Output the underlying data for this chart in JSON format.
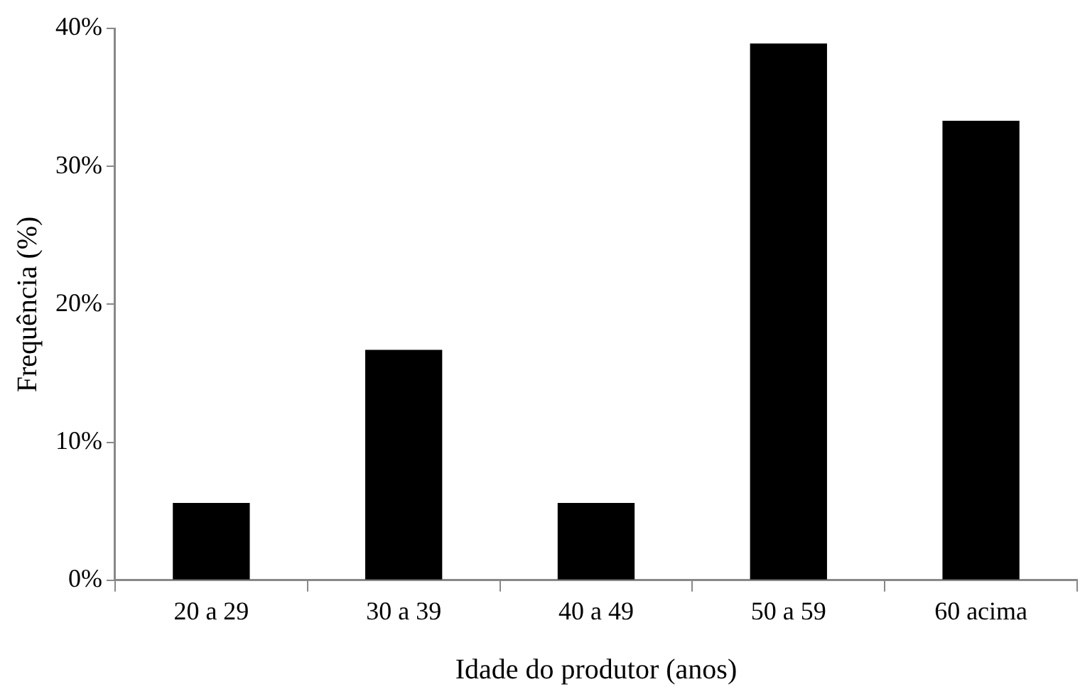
{
  "chart_data": {
    "type": "bar",
    "xlabel": "Idade do produtor (anos)",
    "ylabel": "Frequência (%)",
    "categories": [
      "20 a 29",
      "30 a 39",
      "40 a 49",
      "50 a 59",
      "60 acima"
    ],
    "values": [
      5.6,
      16.7,
      5.6,
      38.9,
      33.3
    ],
    "color": "#000000",
    "ylim": [
      0,
      40
    ],
    "yticks": [
      {
        "value": 0,
        "label": "0%"
      },
      {
        "value": 10,
        "label": "10%"
      },
      {
        "value": 20,
        "label": "20%"
      },
      {
        "value": 30,
        "label": "30%"
      },
      {
        "value": 40,
        "label": "40%"
      }
    ],
    "grid": false,
    "legend": false
  }
}
